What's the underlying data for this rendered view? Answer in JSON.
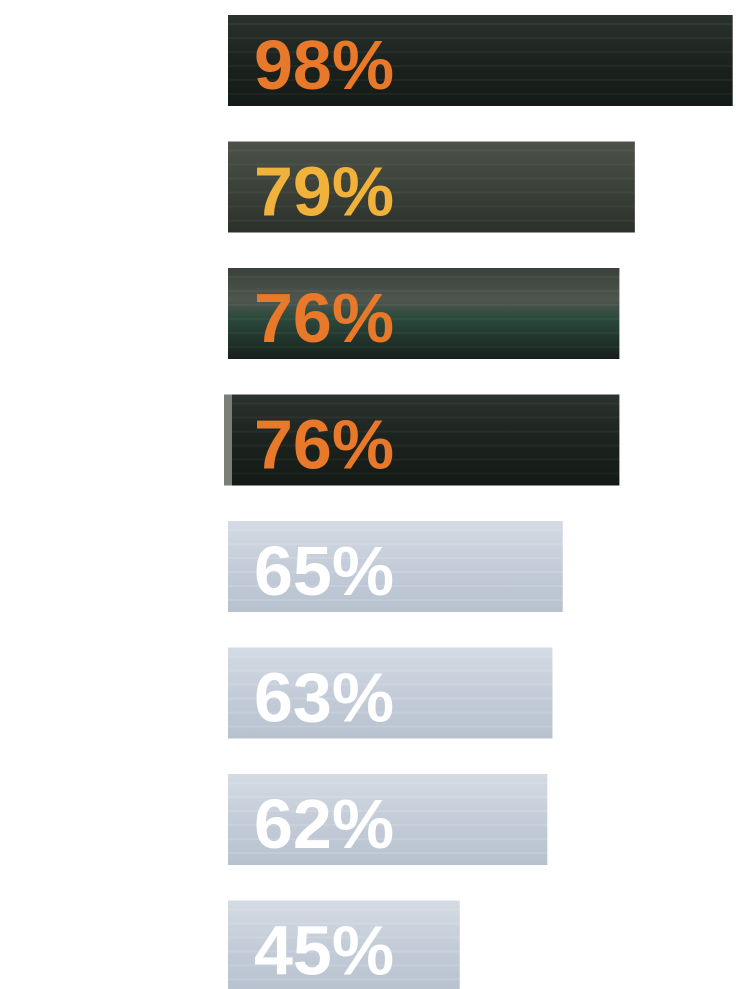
{
  "chart_data": {
    "type": "bar",
    "orientation": "horizontal",
    "categories": [
      "",
      "",
      "",
      "",
      "",
      "",
      "",
      ""
    ],
    "values": [
      98,
      79,
      76,
      76,
      65,
      63,
      62,
      45
    ],
    "data_labels": [
      "98%",
      "79%",
      "76%",
      "76%",
      "65%",
      "63%",
      "62%",
      "45%"
    ],
    "value_unit": "%",
    "xlim": [
      0,
      100
    ],
    "title": "",
    "xlabel": "",
    "ylabel": "",
    "grid": false,
    "legend": "none",
    "bar_styles": [
      "dark",
      "dark",
      "dark",
      "dark",
      "light",
      "light",
      "light",
      "light"
    ],
    "label_colors": [
      "#e8782a",
      "#f0b23a",
      "#e8782a",
      "#e8782a",
      "#ffffff",
      "#ffffff",
      "#ffffff",
      "#ffffff"
    ],
    "colors": {
      "dark_bar": "#1f2621",
      "light_bar": "#c7d0dc",
      "highlight_label": "#e8782a",
      "secondary_label": "#f0b23a",
      "light_label": "#ffffff"
    }
  }
}
